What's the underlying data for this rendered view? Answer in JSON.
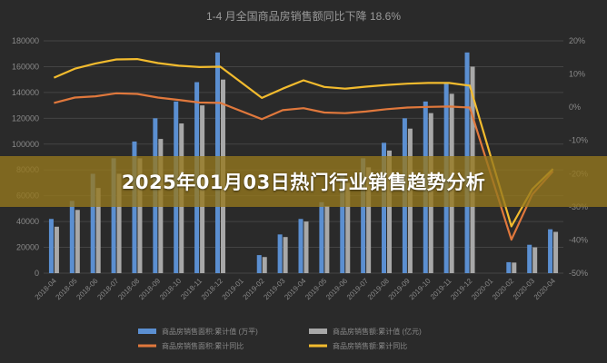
{
  "overlay": {
    "headline": "2025年01月03日热门行业销售趋势分析"
  },
  "colors": {
    "background": "#2a2a2a",
    "area_sales": "#5b8fd1",
    "amount_sales": "#a8a8a8",
    "area_yoy": "#e0783c",
    "amount_yoy": "#f2bb2e",
    "text": "#8a8a8a",
    "grid": "#444444"
  },
  "chart_data": {
    "type": "bar",
    "title": "1-4 月全国商品房销售额同比下降 18.6%",
    "categories": [
      "2018-04",
      "2018-05",
      "2018-06",
      "2018-07",
      "2018-08",
      "2018-09",
      "2018-10",
      "2018-11",
      "2018-12",
      "2019-01",
      "2019-02",
      "2019-03",
      "2019-04",
      "2019-05",
      "2019-06",
      "2019-07",
      "2019-08",
      "2019-09",
      "2019-10",
      "2019-11",
      "2019-12",
      "2020-01",
      "2020-02",
      "2020-03",
      "2020-04"
    ],
    "ylim_left": [
      0,
      180000
    ],
    "yticks_left": [
      "0",
      "20000",
      "40000",
      "60000",
      "80000",
      "100000",
      "120000",
      "140000",
      "160000",
      "180000"
    ],
    "ylim_right": [
      -50,
      20
    ],
    "yticks_right": [
      "-50%",
      "-40%",
      "-30%",
      "-20%",
      "-10%",
      "0%",
      "10%",
      "20%"
    ],
    "series": [
      {
        "name": "商品房销售面积:累计值 (万平)",
        "type": "bar",
        "axis": "left",
        "values": [
          42000,
          56000,
          77000,
          89000,
          102000,
          120000,
          133000,
          148000,
          171000,
          null,
          14000,
          30000,
          42000,
          55000,
          76000,
          89000,
          101000,
          120000,
          133000,
          148000,
          171000,
          null,
          8500,
          22000,
          34000
        ]
      },
      {
        "name": "商品房销售额:累计值 (亿元)",
        "type": "bar",
        "axis": "left",
        "values": [
          36000,
          49000,
          66000,
          77000,
          89000,
          104000,
          116000,
          130000,
          150000,
          null,
          12500,
          28000,
          40000,
          52000,
          70000,
          82000,
          95000,
          112000,
          124000,
          139000,
          160000,
          null,
          8200,
          20000,
          32000
        ]
      },
      {
        "name": "商品房销售面积:累计同比",
        "type": "line",
        "axis": "right",
        "values": [
          1.3,
          2.9,
          3.3,
          4.2,
          4.0,
          2.9,
          2.2,
          1.4,
          1.3,
          null,
          -3.6,
          -0.9,
          -0.3,
          -1.6,
          -1.8,
          -1.3,
          -0.6,
          -0.1,
          0.1,
          0.2,
          -0.1,
          null,
          -39.9,
          -26.3,
          -19.3
        ]
      },
      {
        "name": "商品房销售额:累计同比",
        "type": "line",
        "axis": "right",
        "values": [
          8.9,
          11.6,
          13.2,
          14.4,
          14.5,
          13.3,
          12.5,
          12.1,
          12.2,
          null,
          2.8,
          5.6,
          8.1,
          6.1,
          5.6,
          6.2,
          6.7,
          7.1,
          7.3,
          7.3,
          6.5,
          null,
          -35.9,
          -24.7,
          -18.6
        ]
      }
    ],
    "legend_position": "bottom",
    "grid": true
  }
}
